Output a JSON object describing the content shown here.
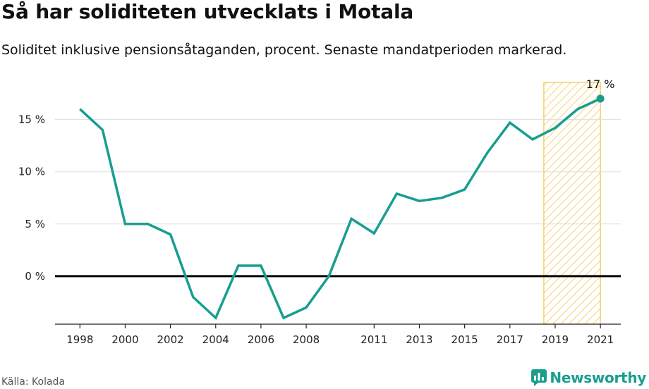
{
  "header": {
    "title": "Så har soliditeten utvecklats i Motala",
    "subtitle": "Soliditet inklusive pensionsåtaganden, procent. Senaste mandatperioden markerad."
  },
  "footer": {
    "source": "Källa: Kolada",
    "brand": "Newsworthy"
  },
  "icons": {
    "brand": "newsworthy-logo-icon"
  },
  "colors": {
    "line": "#179e8f",
    "highlight": "#f5c242",
    "zero_line": "#000000",
    "grid": "#dddddd"
  },
  "chart_data": {
    "type": "line",
    "title": "Så har soliditeten utvecklats i Motala",
    "x": [
      1998,
      1999,
      2000,
      2001,
      2002,
      2003,
      2004,
      2005,
      2006,
      2007,
      2008,
      2009,
      2010,
      2011,
      2012,
      2013,
      2014,
      2015,
      2016,
      2017,
      2018,
      2019,
      2020,
      2021
    ],
    "series": [
      {
        "values": [
          16.0,
          14.0,
          5.0,
          5.0,
          4.0,
          -2.0,
          -4.0,
          1.0,
          1.0,
          -4.0,
          -3.0,
          0.0,
          5.5,
          4.1,
          7.9,
          7.2,
          7.5,
          8.3,
          11.8,
          14.7,
          13.1,
          14.2,
          16.0,
          17.0
        ]
      }
    ],
    "x_ticks": [
      1998,
      2000,
      2002,
      2004,
      2006,
      2008,
      2011,
      2013,
      2015,
      2017,
      2019,
      2021
    ],
    "x_tick_labels": [
      "1998",
      "2000",
      "2002",
      "2004",
      "2006",
      "2008",
      "2011",
      "2013",
      "2015",
      "2017",
      "2019",
      "2021"
    ],
    "y_ticks": [
      0,
      5,
      10,
      15
    ],
    "y_tick_labels": [
      "0 %",
      "5 %",
      "10 %",
      "15 %"
    ],
    "xlim": [
      1996.9,
      2021.9
    ],
    "ylim": [
      -4.6,
      19.7
    ],
    "highlight_range": [
      2018.5,
      2021
    ],
    "end_label": "17 %",
    "grid": true,
    "legend": "none"
  }
}
